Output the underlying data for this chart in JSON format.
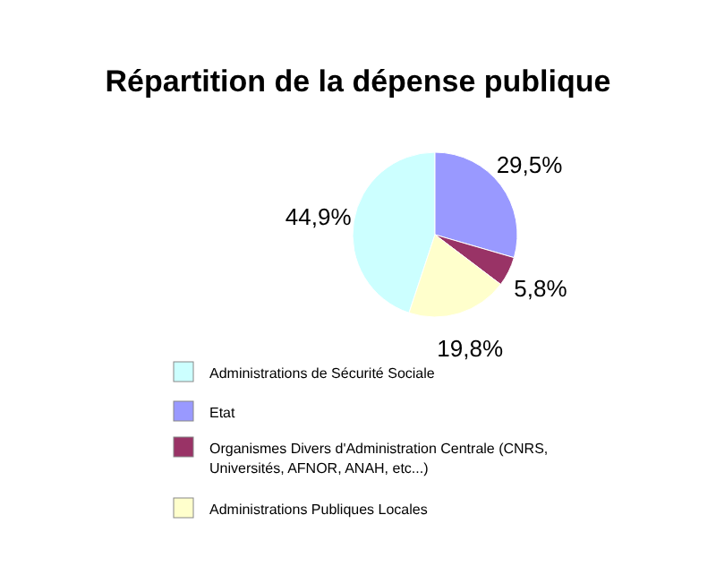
{
  "chart_data": {
    "type": "pie",
    "title": "Répartition de la dépense publique",
    "categories": [
      "Administrations de Sécurité Sociale",
      "Etat",
      "Organismes Divers d'Administration Centrale (CNRS, Universités, AFNOR, ANAH, etc...)",
      "Administrations Publiques Locales"
    ],
    "values": [
      44.9,
      29.5,
      5.8,
      19.8
    ],
    "value_labels": [
      "44,9%",
      "29,5%",
      "5,8%",
      "19,8%"
    ],
    "colors": [
      "#ccffff",
      "#9999ff",
      "#993366",
      "#ffffcc"
    ],
    "legend": "bottom"
  }
}
